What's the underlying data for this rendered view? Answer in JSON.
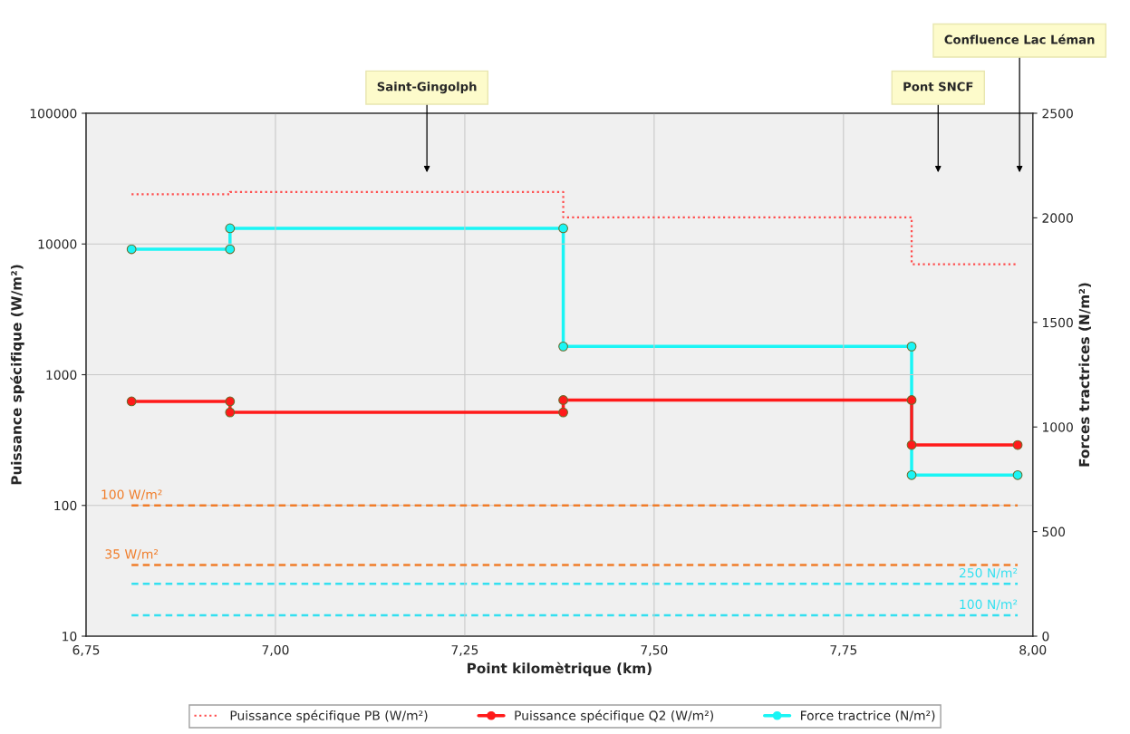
{
  "chart_data": {
    "type": "line",
    "xlabel": "Point kilomètrique (km)",
    "ylabel": "Puissance spécifique (W/m²)",
    "y2label": "Forces tractrices (N/m²)",
    "xlim": [
      6.75,
      8.0
    ],
    "xticks": [
      {
        "value": 6.75,
        "label": "6,75"
      },
      {
        "value": 7.0,
        "label": "7,00"
      },
      {
        "value": 7.25,
        "label": "7,25"
      },
      {
        "value": 7.5,
        "label": "7,50"
      },
      {
        "value": 7.75,
        "label": "7,75"
      },
      {
        "value": 8.0,
        "label": "8,00"
      }
    ],
    "log": "y",
    "ylim": [
      10,
      100000
    ],
    "yticks": [
      10,
      100,
      1000,
      10000,
      100000
    ],
    "y2lim": [
      0,
      2500
    ],
    "y2ticks": [
      0,
      500,
      1000,
      1500,
      2000,
      2500
    ],
    "grid": true,
    "legend": "bottom",
    "series": [
      {
        "name": "Puissance spécifique PB (W/m²)",
        "color": "#ff4d4d",
        "line_style": "dotted",
        "marker": "none",
        "x": [
          6.81,
          6.94,
          6.94,
          7.38,
          7.38,
          7.84,
          7.84,
          7.98
        ],
        "values": [
          24000,
          24000,
          25000,
          25000,
          16000,
          16000,
          7000,
          7000
        ]
      },
      {
        "name": "Puissance spécifique Q2 (W/m²)",
        "color": "#ff1a1a",
        "line_style": "solid",
        "marker": "circle",
        "x": [
          6.81,
          6.94,
          6.94,
          7.38,
          7.38,
          7.84,
          7.84,
          7.98
        ],
        "values": [
          625,
          625,
          515,
          515,
          640,
          640,
          290,
          290
        ]
      },
      {
        "name": "Force tractrice (N/m²)",
        "color": "#1af5f5",
        "line_style": "solid",
        "marker": "circle",
        "axis": "y2",
        "x": [
          6.81,
          6.94,
          6.94,
          7.38,
          7.38,
          7.84,
          7.84,
          7.98
        ],
        "values": [
          1850,
          1850,
          1950,
          1950,
          1385,
          1385,
          770,
          770
        ]
      }
    ],
    "ref_lines": [
      {
        "axis": "y",
        "value": 100,
        "label": "100 W/m²",
        "color": "#f07d2a",
        "line_style": "dashed"
      },
      {
        "axis": "y",
        "value": 35,
        "label": "35 W/m²",
        "color": "#f07d2a",
        "line_style": "dashed"
      },
      {
        "axis": "y2",
        "value": 250,
        "label": "250 N/m²",
        "color": "#33e0f0",
        "line_style": "dashed"
      },
      {
        "axis": "y2",
        "value": 100,
        "label": "100 N/m²",
        "color": "#33e0f0",
        "line_style": "dashed"
      }
    ],
    "annotations": [
      "Saint-Gingolph",
      "Pont SNCF",
      "Confluence Lac Léman"
    ]
  }
}
